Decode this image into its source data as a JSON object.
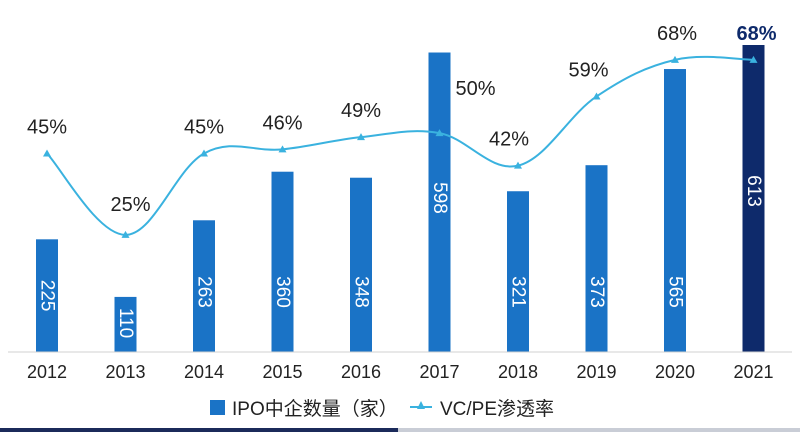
{
  "chart_data": {
    "type": "bar+line",
    "categories": [
      "2012",
      "2013",
      "2014",
      "2015",
      "2016",
      "2017",
      "2018",
      "2019",
      "2020",
      "2021"
    ],
    "series": [
      {
        "name": "IPO中企数量（家）",
        "type": "bar",
        "values": [
          225,
          110,
          263,
          360,
          348,
          598,
          321,
          373,
          565,
          613
        ],
        "labels": [
          "225",
          "110",
          "263",
          "360",
          "348",
          "598",
          "321",
          "373",
          "565",
          "613"
        ]
      },
      {
        "name": "VC/PE渗透率",
        "type": "line",
        "values": [
          45,
          25,
          45,
          46,
          49,
          50,
          42,
          59,
          68,
          68
        ],
        "labels": [
          "45%",
          "25%",
          "45%",
          "46%",
          "49%",
          "50%",
          "42%",
          "59%",
          "68%",
          "68%"
        ]
      }
    ],
    "bar_ylim": [
      0,
      660
    ],
    "line_ylim": [
      0,
      100
    ],
    "highlight_index": 9,
    "legend_position": "bottom-center",
    "colors": {
      "bar": "#1a73c6",
      "bar_highlight": "#0e2a6b",
      "line": "#3ab2df"
    }
  },
  "legend": {
    "bar_label": "IPO中企数量（家）",
    "line_label": "VC/PE渗透率"
  }
}
